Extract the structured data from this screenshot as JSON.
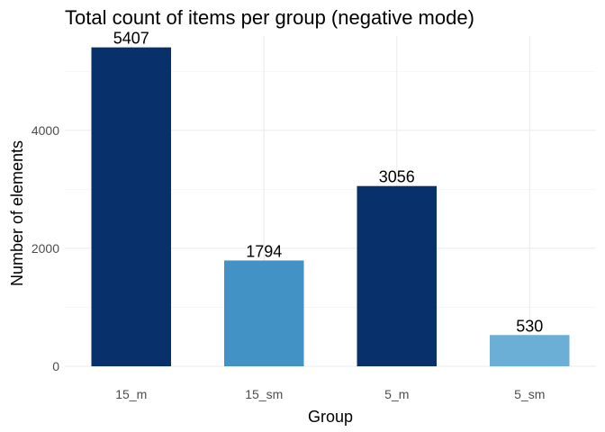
{
  "chart_data": {
    "type": "bar",
    "title": "Total count of items per group (negative mode)",
    "xlabel": "Group",
    "ylabel": "Number of elements",
    "categories": [
      "15_m",
      "15_sm",
      "5_m",
      "5_sm"
    ],
    "values": [
      5407,
      1794,
      3056,
      530
    ],
    "bar_colors": [
      "#08306b",
      "#4292c6",
      "#08306b",
      "#6baed6"
    ],
    "ylim": [
      0,
      5600
    ],
    "yticks": [
      0,
      2000,
      4000
    ],
    "grid": true,
    "legend": "none"
  }
}
